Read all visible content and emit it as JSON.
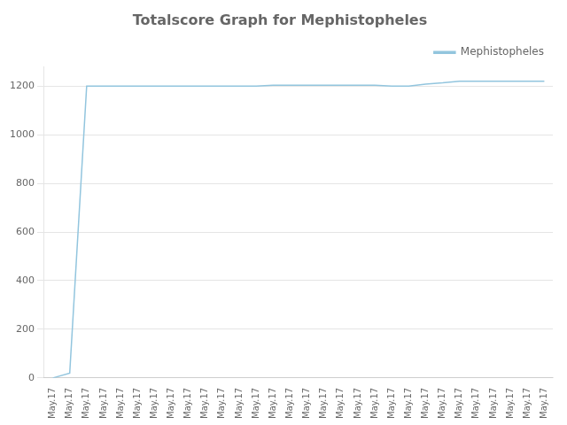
{
  "chart_data": {
    "type": "line",
    "title": "Totalscore Graph for Mephistopheles",
    "categories": [
      "May.17",
      "May.17",
      "May.17",
      "May.17",
      "May.17",
      "May.17",
      "May.17",
      "May.17",
      "May.17",
      "May.17",
      "May.17",
      "May.17",
      "May.17",
      "May.17",
      "May.17",
      "May.17",
      "May.17",
      "May.17",
      "May.17",
      "May.17",
      "May.17",
      "May.17",
      "May.17",
      "May.17",
      "May.17",
      "May.17",
      "May.17",
      "May.17",
      "May.17",
      "May.17"
    ],
    "series": [
      {
        "name": "Mephistopheles",
        "color": "#92c5de",
        "values": [
          0,
          20,
          1200,
          1200,
          1200,
          1200,
          1200,
          1200,
          1200,
          1200,
          1200,
          1200,
          1200,
          1203,
          1203,
          1203,
          1203,
          1203,
          1203,
          1203,
          1200,
          1200,
          1208,
          1213,
          1220,
          1220,
          1220,
          1220,
          1220,
          1220
        ]
      }
    ],
    "ylim": [
      0,
      1280
    ],
    "yticks": [
      0,
      200,
      400,
      600,
      800,
      1000,
      1200
    ],
    "grid": true,
    "legend": "upper right"
  }
}
